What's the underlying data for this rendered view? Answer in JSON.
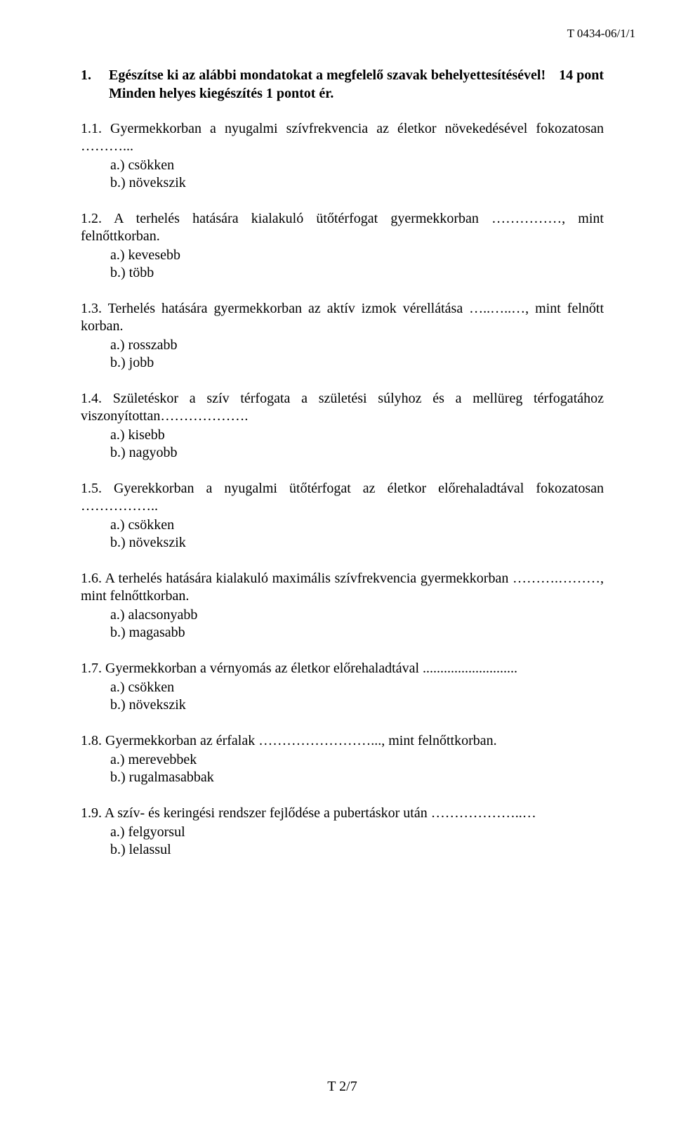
{
  "document": {
    "header_code": "T 0434-06/1/1",
    "footer": "T 2/7",
    "text_color": "#000000",
    "background_color": "#ffffff",
    "base_font_size": 20,
    "font_family": "Times New Roman"
  },
  "instruction": {
    "number": "1.",
    "line1": "Egészítse ki az alábbi mondatokat a megfelelő szavak behelyettesítésével!",
    "line2": "Minden helyes kiegészítés 1 pontot ér.",
    "points": "14 pont"
  },
  "questions": [
    {
      "num": "1.1.",
      "text": "Gyermekkorban a nyugalmi szívfrekvencia az életkor növekedésével fokozatosan ………...",
      "options": [
        "a.) csökken",
        "b.) növekszik"
      ]
    },
    {
      "num": "1.2.",
      "text": "A terhelés hatására kialakuló ütőtérfogat gyermekkorban ……………, mint felnőttkorban.",
      "options": [
        "a.) kevesebb",
        "b.) több"
      ]
    },
    {
      "num": "1.3.",
      "text": "Terhelés hatására gyermekkorban az aktív izmok vérellátása …..…..…, mint felnőtt korban.",
      "options": [
        "a.)  rosszabb",
        "b.)  jobb"
      ]
    },
    {
      "num": "1.4.",
      "text": "Születéskor a szív térfogata a születési súlyhoz és a mellüreg térfogatához viszonyítottan……………….",
      "options": [
        "a.)  kisebb",
        "b.)  nagyobb"
      ]
    },
    {
      "num": "1.5.",
      "text": "Gyerekkorban a nyugalmi ütőtérfogat az életkor előrehaladtával fokozatosan ……………..",
      "options": [
        "a.) csökken",
        "b.) növekszik"
      ]
    },
    {
      "num": "1.6.",
      "text": "A terhelés hatására kialakuló maximális szívfrekvencia gyermekkorban ……….………, mint felnőttkorban.",
      "options": [
        "a.) alacsonyabb",
        "b.) magasabb"
      ]
    },
    {
      "num": "1.7.",
      "text": "Gyermekkorban a vérnyomás az életkor előrehaladtával ...........................",
      "options": [
        "a.) csökken",
        "b.) növekszik"
      ]
    },
    {
      "num": "1.8.",
      "text": "Gyermekkorban az érfalak ……………………..., mint felnőttkorban.",
      "options": [
        "a.) merevebbek",
        "b.) rugalmasabbak"
      ]
    },
    {
      "num": "1.9.",
      "text": "A szív- és keringési rendszer fejlődése a pubertáskor után ………………..…",
      "options": [
        "a.) felgyorsul",
        "b.) lelassul"
      ]
    }
  ]
}
